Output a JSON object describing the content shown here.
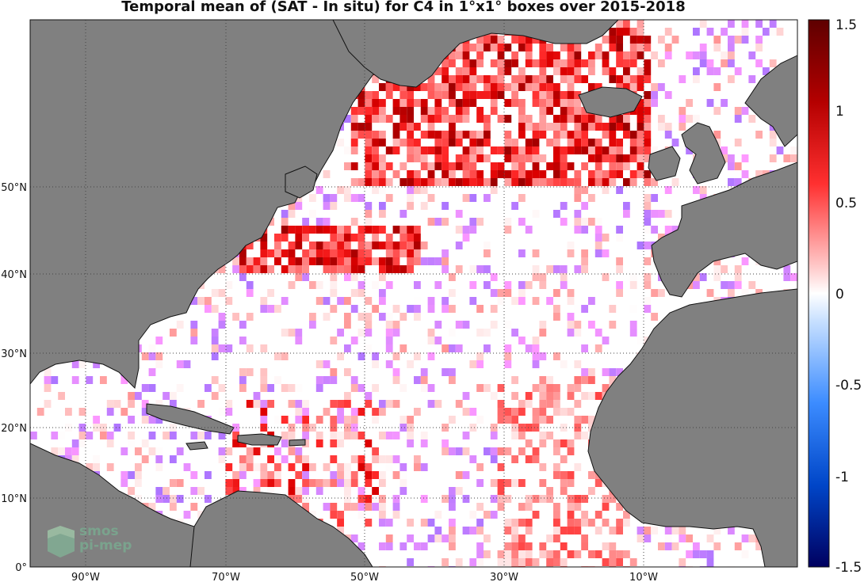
{
  "title": "Temporal mean of (SAT - In situ) for C4 in 1°x1° boxes over 2015-2018",
  "lon_labels": [
    "90°W",
    "70°W",
    "50°W",
    "30°W",
    "10°W"
  ],
  "lat_labels": [
    "50°N",
    "40°N",
    "30°N",
    "20°N",
    "10°N",
    "0°"
  ],
  "colorbar": {
    "min": -1.5,
    "max": 1.5,
    "ticks": [
      "1.5",
      "1",
      "0.5",
      "0",
      "-0.5",
      "-1",
      "-1.5"
    ],
    "colormap": "blue-white-red"
  },
  "colors": {
    "land": "#808080",
    "ocean": "#ffffff",
    "grid": "#555555"
  },
  "logo": {
    "line1": "smos",
    "line2": "pi-mep",
    "color": "#7aa38d"
  }
}
